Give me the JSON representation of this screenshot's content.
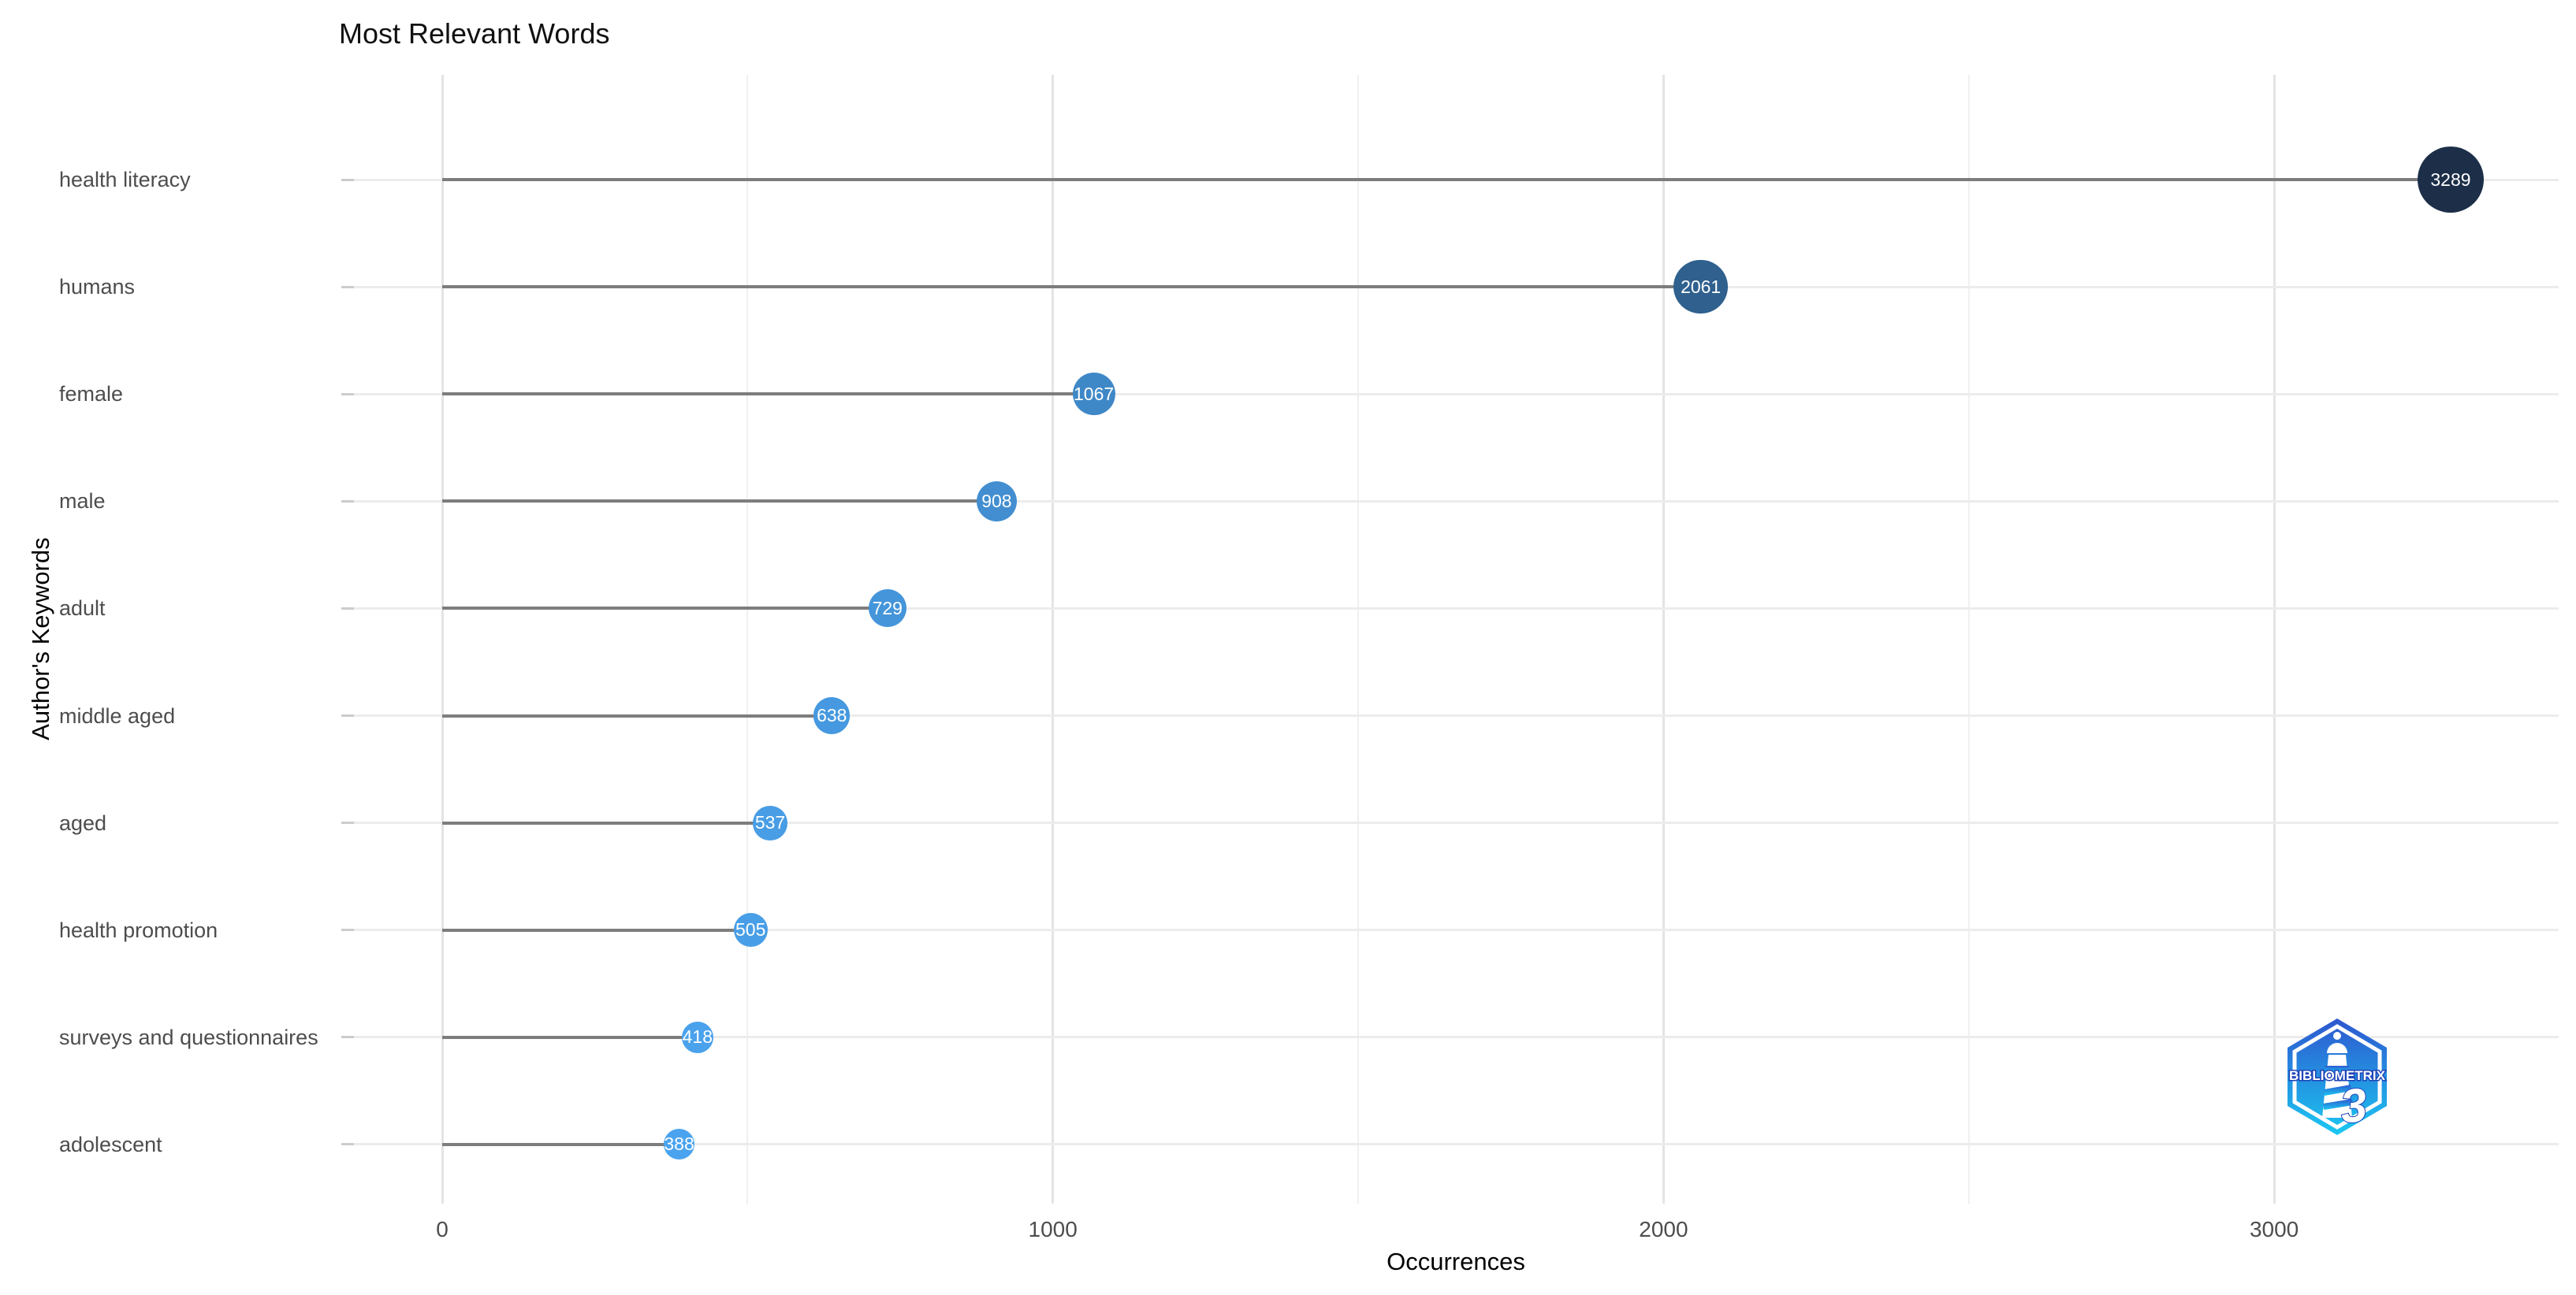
{
  "title": "Most Relevant Words",
  "axes": {
    "x_label": "Occurrences",
    "y_label": "Author's Keywords"
  },
  "chart_data": {
    "type": "scatter",
    "variant": "lollipop",
    "title": "Most Relevant Words",
    "xlabel": "Occurrences",
    "ylabel": "Author's Keywords",
    "categories": [
      "health literacy",
      "humans",
      "female",
      "male",
      "adult",
      "middle aged",
      "aged",
      "health promotion",
      "surveys and questionnaires",
      "adolescent"
    ],
    "values": [
      3289,
      2061,
      1067,
      908,
      729,
      638,
      537,
      505,
      418,
      388
    ],
    "x_ticks": [
      0,
      1000,
      2000,
      3000
    ],
    "x_minor_ticks": [
      500,
      1500,
      2500
    ],
    "xlim": [
      -145,
      3465
    ],
    "grid": true,
    "legend": "none",
    "colors": {
      "dot_max": "#1c2e48",
      "dot_min": "#4aa3ee",
      "stem": "#7d7d7d",
      "dot_text": "#ffffff"
    }
  },
  "logo": {
    "text": "BIBLIOMETRIX",
    "numeral": "3",
    "colors": {
      "top": "#2e57cf",
      "bottom": "#1bc8f2",
      "glyph": "#ffffff"
    }
  }
}
